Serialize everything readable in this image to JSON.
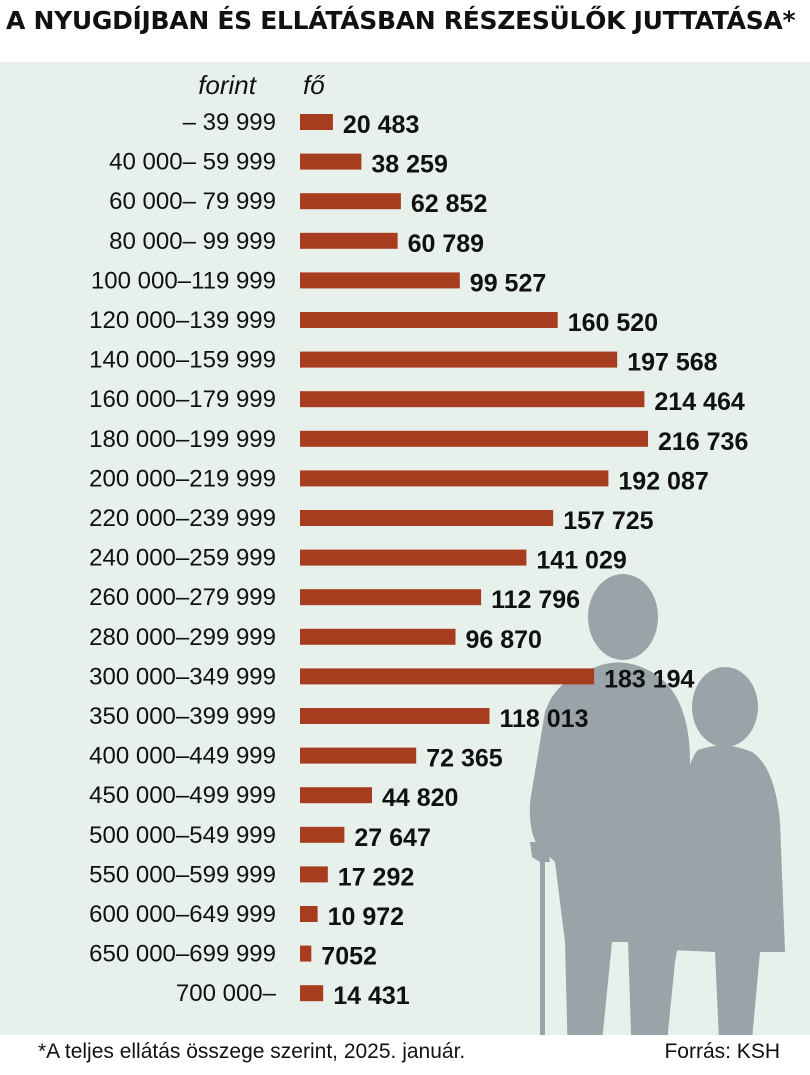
{
  "title": "A NYUGDÍJBAN ÉS ELLÁTÁSBAN RÉSZESÜLŐK JUTTATÁSA*",
  "footnote": "*A teljes ellátás összege szerint, 2025. január.",
  "source": "Forrás: KSH",
  "colors": {
    "bar": "#a63d1e",
    "panel": "#e8f0ec",
    "silhouette": "#9aa3a8"
  },
  "chart_data": {
    "type": "bar",
    "orientation": "horizontal",
    "category_unit": "forint",
    "value_unit": "fő",
    "categories": [
      "– 39 999",
      "40 000– 59 999",
      "60 000– 79 999",
      "80 000– 99 999",
      "100 000–119 999",
      "120 000–139 999",
      "140 000–159 999",
      "160 000–179 999",
      "180 000–199 999",
      "200 000–219 999",
      "220 000–239 999",
      "240 000–259 999",
      "260 000–279 999",
      "280 000–299 999",
      "300 000–349 999",
      "350 000–399 999",
      "400 000–449 999",
      "450 000–499 999",
      "500 000–549 999",
      "550 000–599 999",
      "600 000–649 999",
      "650 000–699 999",
      "700 000–"
    ],
    "values": [
      20483,
      38259,
      62852,
      60789,
      99527,
      160520,
      197568,
      214464,
      216736,
      192087,
      157725,
      141029,
      112796,
      96870,
      183194,
      118013,
      72365,
      44820,
      27647,
      17292,
      10972,
      7052,
      14431
    ],
    "value_labels": [
      "20 483",
      "38 259",
      "62 852",
      "60 789",
      "99 527",
      "160 520",
      "197 568",
      "214 464",
      "216 736",
      "192 087",
      "157 725",
      "141 029",
      "112 796",
      "96 870",
      "183 194",
      "118 013",
      "72 365",
      "44 820",
      "27 647",
      "17 292",
      "10 972",
      "7052",
      "14 431"
    ],
    "grid": false,
    "legend": false
  }
}
